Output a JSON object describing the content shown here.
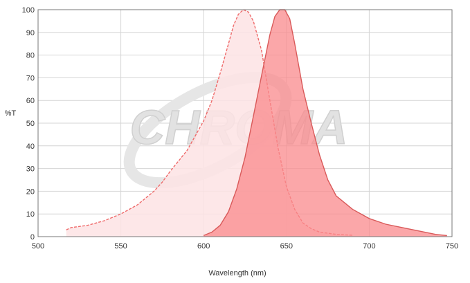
{
  "watermark": {
    "text": "CHROMA"
  },
  "chart_data": {
    "type": "area",
    "xlabel": "Wavelength (nm)",
    "ylabel": "%T",
    "xlim": [
      500,
      750
    ],
    "ylim": [
      0,
      100
    ],
    "xticks": [
      500,
      550,
      600,
      650,
      700,
      750
    ],
    "yticks": [
      0,
      10,
      20,
      30,
      40,
      50,
      60,
      70,
      80,
      90,
      100
    ],
    "grid": true,
    "legend": "none",
    "series": [
      {
        "color": "#ef6a6a",
        "fill": "#fde3e4",
        "dashed": true,
        "x": [
          517,
          520,
          530,
          540,
          550,
          560,
          570,
          575,
          580,
          590,
          600,
          605,
          610,
          615,
          618,
          621,
          624,
          627,
          630,
          635,
          640,
          645,
          650,
          655,
          660,
          665,
          670,
          680,
          690
        ],
        "y": [
          3,
          4,
          5,
          7,
          10,
          14,
          20,
          24,
          29,
          38,
          51,
          60,
          72,
          85,
          93,
          98,
          100,
          99,
          95,
          82,
          60,
          39,
          22,
          12,
          6,
          3.5,
          2,
          1,
          0.6
        ]
      },
      {
        "color": "#d95a5a",
        "fill": "#f98a8c",
        "dashed": false,
        "x": [
          600,
          605,
          610,
          615,
          620,
          625,
          630,
          635,
          640,
          643,
          646,
          649,
          652,
          655,
          660,
          665,
          670,
          675,
          680,
          690,
          700,
          710,
          720,
          730,
          740,
          747
        ],
        "y": [
          0.5,
          2,
          5,
          11,
          21,
          35,
          53,
          71,
          89,
          97,
          100,
          100,
          96,
          85,
          65,
          50,
          36,
          25,
          18,
          12,
          8,
          5.5,
          4,
          2.5,
          1,
          0.5
        ]
      }
    ]
  }
}
